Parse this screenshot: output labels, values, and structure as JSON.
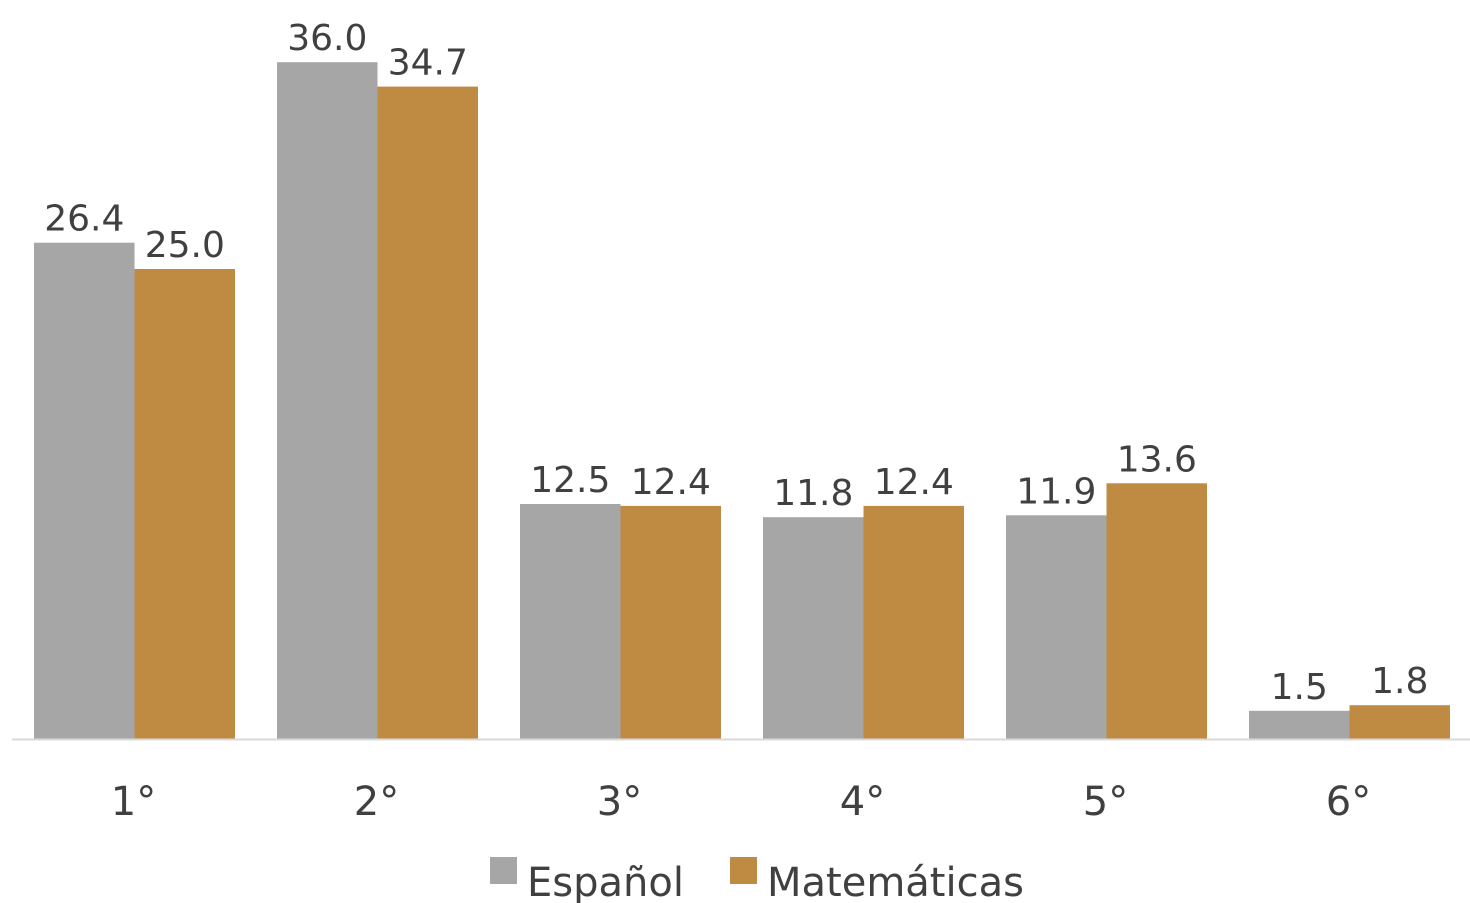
{
  "chart_data": {
    "type": "bar",
    "categories": [
      "1°",
      "2°",
      "3°",
      "4°",
      "5°",
      "6°"
    ],
    "series": [
      {
        "name": "Español",
        "values": [
          26.4,
          36.0,
          12.5,
          11.8,
          11.9,
          1.5
        ],
        "labels": [
          "26.4",
          "36.0",
          "12.5",
          "11.8",
          "11.9",
          "1.5"
        ],
        "color": "#a6a6a6"
      },
      {
        "name": "Matemáticas",
        "values": [
          25.0,
          34.7,
          12.4,
          12.4,
          13.6,
          1.8
        ],
        "labels": [
          "25.0",
          "34.7",
          "12.4",
          "12.4",
          "13.6",
          "1.8"
        ],
        "color": "#bf8b43"
      }
    ],
    "title": "",
    "xlabel": "",
    "ylabel": "",
    "ylim": [
      0,
      36
    ],
    "grid": false,
    "legend_position": "bottom-center",
    "axis_color": "#d9d9d9"
  }
}
